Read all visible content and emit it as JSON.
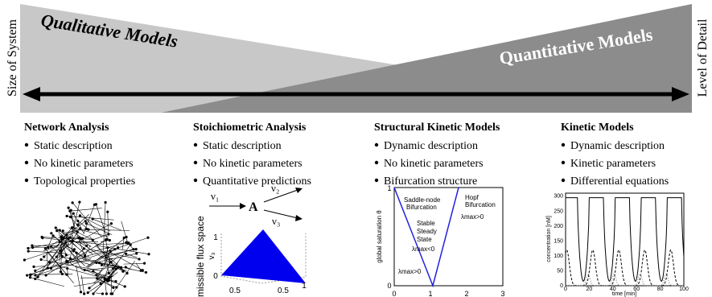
{
  "banner": {
    "left_label": "Size of System",
    "right_label": "Level of Detail",
    "qualitative": "Qualitative Models",
    "quantitative": "Quantitative Models"
  },
  "columns": [
    {
      "title": "Network Analysis",
      "bullets": [
        "Static description",
        "No kinetic parameters",
        "Topological properties"
      ]
    },
    {
      "title": "Stoichiometric Analysis",
      "bullets": [
        "Static description",
        "No kinetic parameters",
        "Quantitative predictions"
      ]
    },
    {
      "title": "Structural Kinetic Models",
      "bullets": [
        "Dynamic description",
        "No kinetic parameters",
        "Bifurcation structure"
      ]
    },
    {
      "title": "Kinetic Models",
      "bullets": [
        "Dynamic description",
        "Kinetic parameters",
        "Differential equations"
      ]
    }
  ],
  "stoichiometric_figure": {
    "metabolite": "A",
    "fluxes": [
      "ν₁",
      "ν₂",
      "ν₃"
    ],
    "axis_label": "dmissible flux space",
    "z_label": "v₃",
    "ticks": [
      "1",
      "0",
      "0.5",
      "0.5",
      "1"
    ]
  },
  "structural_figure": {
    "y_label": "global saturation θ",
    "y_ticks": [
      "1",
      "0"
    ],
    "x_ticks": [
      "0",
      "1",
      "2",
      "3"
    ],
    "annotations": [
      "Saddle-node",
      "Bifurcation",
      "Hopf",
      "Bifurcation",
      "Stable",
      "Steady",
      "State",
      "λmax<0",
      "λmax>0",
      "λmax>0"
    ]
  },
  "kinetic_figure": {
    "x_label": "time [min]",
    "y_label": "concentration [nM]",
    "x_ticks": [
      "0",
      "20",
      "40",
      "60",
      "80",
      "100"
    ],
    "y_ticks": [
      "0",
      "50",
      "100",
      "150",
      "200",
      "250",
      "300"
    ]
  }
}
